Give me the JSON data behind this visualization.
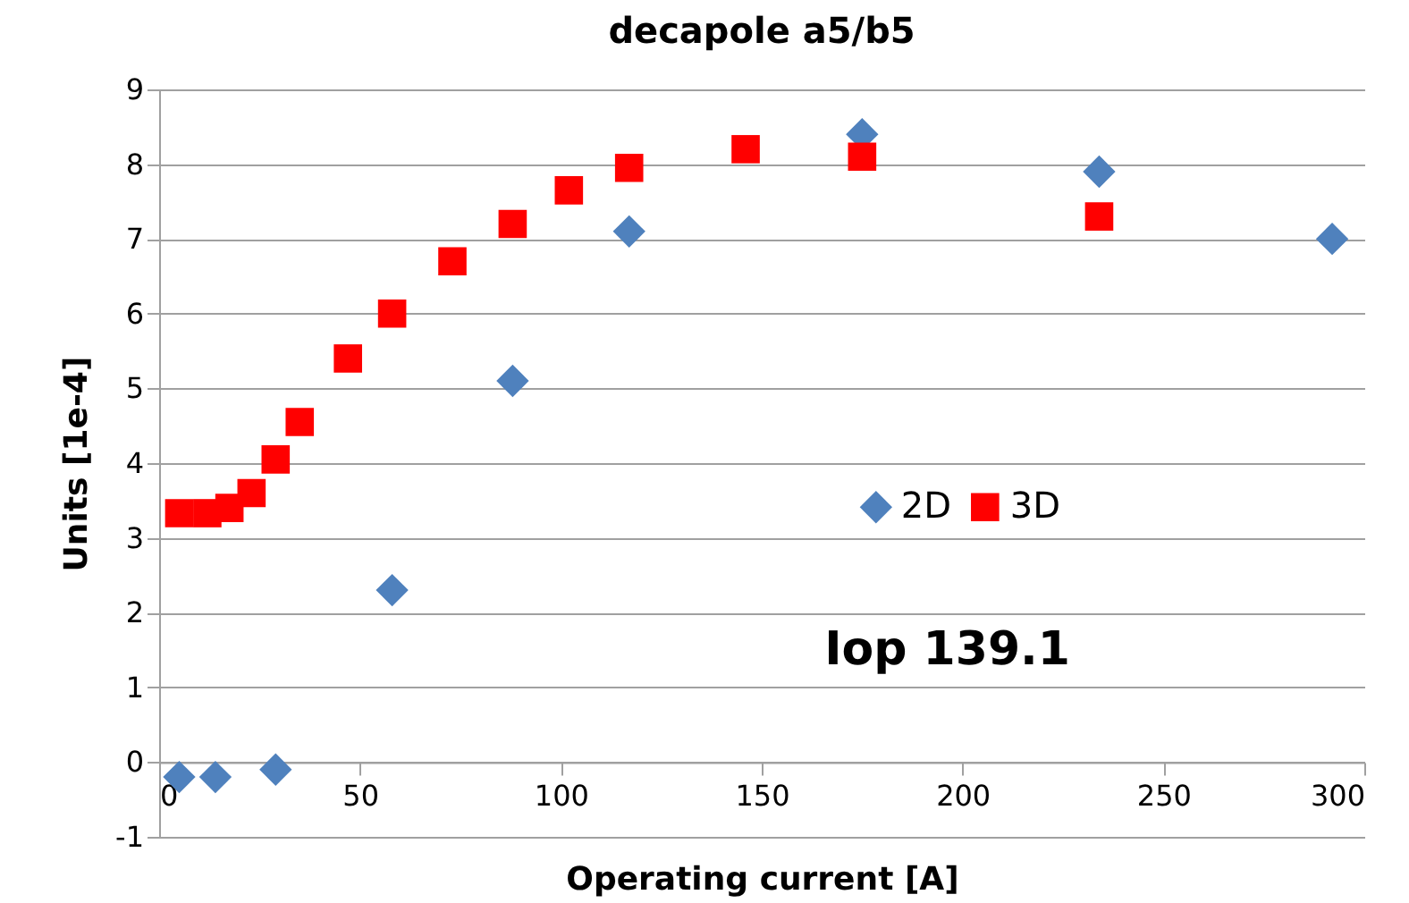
{
  "chart_data": {
    "type": "scatter",
    "title": "decapole a5/b5",
    "xlabel": "Operating current [A]",
    "ylabel": "Units [1e-4]",
    "annotations": [
      "Iop 139.1"
    ],
    "series": [
      {
        "name": "2D",
        "color": "#4f81bd",
        "marker": "diamond",
        "x": [
          5,
          14,
          29,
          58,
          88,
          117,
          175,
          234,
          292
        ],
        "values": [
          -0.2,
          -0.2,
          -0.1,
          2.3,
          5.1,
          7.1,
          8.4,
          7.9,
          7.0
        ]
      },
      {
        "name": "3D",
        "color": "#ff0000",
        "marker": "square",
        "x": [
          5,
          12,
          17.5,
          23,
          29,
          35,
          47,
          58,
          73,
          88,
          102,
          117,
          146,
          175,
          234
        ],
        "values": [
          3.33,
          3.33,
          3.4,
          3.6,
          4.05,
          4.55,
          5.4,
          6.0,
          6.7,
          7.2,
          7.65,
          7.95,
          8.2,
          8.1,
          7.3
        ]
      }
    ],
    "xlim": [
      0,
      300
    ],
    "xticks": [
      0,
      50,
      100,
      150,
      200,
      250,
      300
    ],
    "ylim": [
      -1,
      9
    ],
    "yticks": [
      -1,
      0,
      1,
      2,
      3,
      4,
      5,
      6,
      7,
      8,
      9
    ],
    "grid": "y",
    "legend": "right"
  }
}
